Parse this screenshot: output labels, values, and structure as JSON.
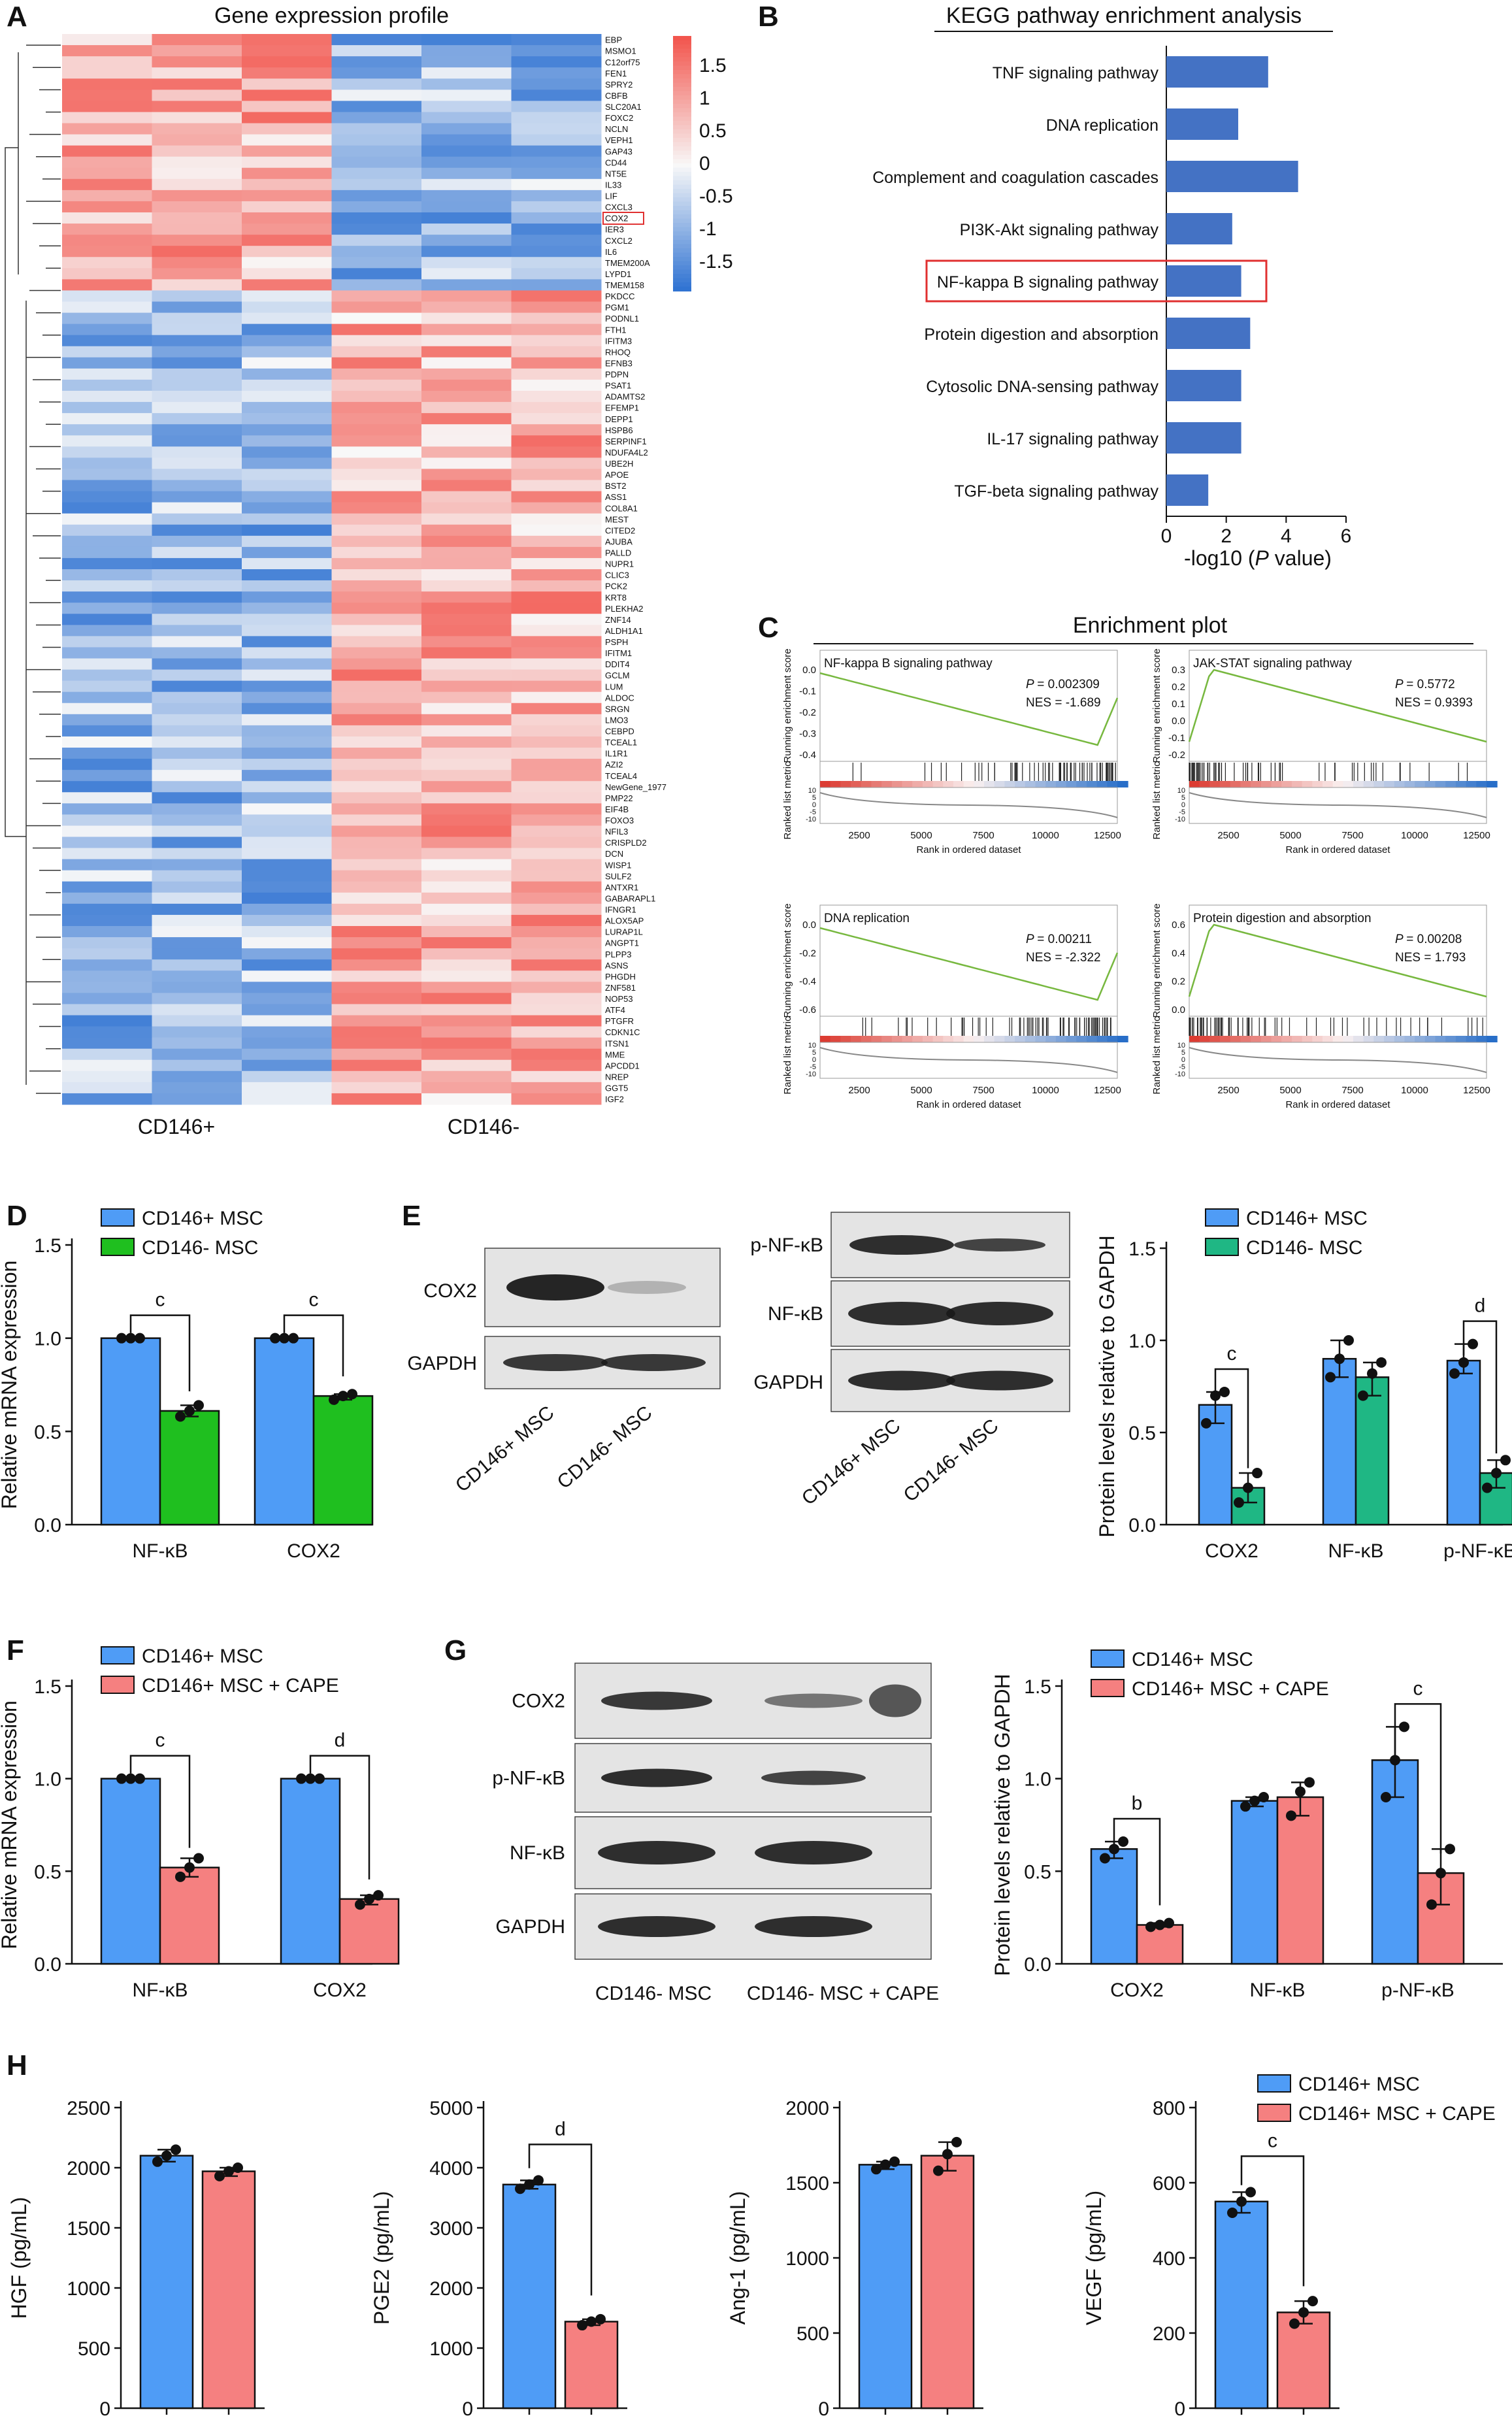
{
  "colors": {
    "cd146p": "#4f9cf6",
    "cd146n": "#1fbf1f",
    "cape": "#f58080",
    "teal": "#1fb784",
    "kegg": "#4472c4",
    "heat_low": "#2a6fd1",
    "heat_high": "#f2564e",
    "gsea": "#77b83f"
  },
  "panel_labels": [
    "A",
    "B",
    "C",
    "D",
    "E",
    "F",
    "G",
    "H"
  ],
  "chart_data": [
    {
      "id": "A",
      "type": "heatmap",
      "title": "Gene expression profile",
      "groups": [
        "CD146+",
        "CD146-"
      ],
      "colorbar_ticks": [
        "1.5",
        "1",
        "0.5",
        "0",
        "-0.5",
        "-1",
        "-1.5"
      ],
      "highlight_gene": "COX2",
      "genes_cluster1": [
        "EBP",
        "MSMO1",
        "C12orf75",
        "FEN1",
        "SPRY2",
        "CBFB",
        "SLC20A1",
        "FOXC2",
        "NCLN",
        "VEPH1",
        "GAP43",
        "CD44",
        "NT5E",
        "IL33",
        "LIF",
        "CXCL3",
        "COX2",
        "IER3",
        "CXCL2",
        "IL6",
        "TMEM200A",
        "LYPD1",
        "TMEM158"
      ],
      "genes_cluster2": [
        "PKDCC",
        "PGM1",
        "PODNL1",
        "FTH1",
        "IFITM3",
        "RHOQ",
        "EFNB3",
        "PDPN",
        "PSAT1",
        "ADAMTS2",
        "EFEMP1",
        "DEPP1",
        "HSPB6",
        "SERPINF1",
        "NDUFA4L2",
        "UBE2H",
        "APOE",
        "BST2",
        "ASS1",
        "COL8A1",
        "MEST",
        "CITED2",
        "AJUBA",
        "PALLD",
        "NUPR1",
        "CLIC3",
        "PCK2",
        "KRT8",
        "PLEKHA2",
        "ZNF14",
        "ALDH1A1",
        "PSPH",
        "IFITM1",
        "DDIT4",
        "GCLM",
        "LUM",
        "ALDOC",
        "SRGN",
        "LMO3",
        "CEBPD",
        "TCEAL1",
        "IL1R1",
        "AZI2",
        "TCEAL4",
        "NewGene_1977",
        "PMP22",
        "EIF4B",
        "FOXO3",
        "NFIL3",
        "CRISPLD2",
        "DCN",
        "WISP1",
        "SULF2",
        "ANTXR1",
        "GABARAPL1",
        "IFNGR1",
        "ALOX5AP",
        "LURAP1L",
        "ANGPT1",
        "PLPP3",
        "ASNS",
        "PHGDH",
        "ZNF581",
        "NOP53",
        "ATF4",
        "PTGFR",
        "CDKN1C",
        "ITSN1",
        "MME",
        "APCDD1",
        "NREP",
        "GGT5",
        "IGF2"
      ]
    },
    {
      "id": "B",
      "type": "bar",
      "orientation": "horizontal",
      "title": "KEGG pathway enrichment analysis",
      "categories": [
        "TNF signaling pathway",
        "DNA replication",
        "Complement and coagulation cascades",
        "PI3K-Akt signaling pathway",
        "NF-kappa B signaling pathway",
        "Protein digestion and absorption",
        "Cytosolic DNA-sensing pathway",
        "IL-17 signaling pathway",
        "TGF-beta signaling pathway"
      ],
      "values": [
        3.4,
        2.4,
        4.4,
        2.2,
        2.5,
        2.8,
        2.5,
        2.5,
        1.4
      ],
      "highlight": "NF-kappa B signaling pathway",
      "xlabel_pre": "-log10 (",
      "xlabel_it": "P",
      "xlabel_post": " value)",
      "xlim": [
        0,
        6
      ],
      "xticks": [
        "0",
        "2",
        "4",
        "6"
      ]
    },
    {
      "id": "C",
      "type": "line",
      "title": "Enrichment plot",
      "ylabel_top": "Running enrichment score",
      "ylabel_bottom": "Ranked list metric",
      "xlabel": "Rank in ordered dataset",
      "xticks": [
        "2500",
        "5000",
        "7500",
        "10000",
        "12500"
      ],
      "subplots": [
        {
          "name": "NF-kappa B signaling pathway",
          "p": "= 0.002309",
          "nes": "NES = -1.689",
          "yticks": [
            "0.0",
            "-0.1",
            "-0.2",
            "-0.3",
            "-0.4"
          ],
          "trend": "negative"
        },
        {
          "name": "JAK-STAT signaling pathway",
          "p": "= 0.5772",
          "nes": "NES = 0.9393",
          "yticks": [
            "0.3",
            "0.2",
            "0.1",
            "0.0",
            "-0.1",
            "-0.2"
          ],
          "trend": "positive"
        },
        {
          "name": "DNA replication",
          "p": "= 0.00211",
          "nes": "NES = -2.322",
          "yticks": [
            "0.0",
            "-0.2",
            "-0.4",
            "-0.6"
          ],
          "trend": "negative"
        },
        {
          "name": "Protein digestion and absorption",
          "p": "= 0.00208",
          "nes": "NES = 1.793",
          "yticks": [
            "0.6",
            "0.4",
            "0.2",
            "0.0"
          ],
          "trend": "positive"
        }
      ],
      "metric_ticks": [
        "10",
        "5",
        "0",
        "-5",
        "-10"
      ]
    },
    {
      "id": "D",
      "type": "bar",
      "ylabel": "Relative mRNA expression",
      "ylim": [
        0,
        1.5
      ],
      "yticks": [
        "0.0",
        "0.5",
        "1.0",
        "1.5"
      ],
      "categories": [
        "NF-κB",
        "COX2"
      ],
      "series": [
        {
          "name": "CD146+ MSC",
          "values": [
            1.0,
            1.0
          ],
          "points": [
            [
              1.0,
              1.0,
              1.0
            ],
            [
              1.0,
              1.0,
              1.0
            ]
          ]
        },
        {
          "name": "CD146- MSC",
          "values": [
            0.61,
            0.69
          ],
          "points": [
            [
              0.58,
              0.61,
              0.64
            ],
            [
              0.67,
              0.69,
              0.7
            ]
          ]
        }
      ],
      "significance": [
        "c",
        "c"
      ]
    },
    {
      "id": "E",
      "type": "bar",
      "ylabel": "Protein levels relative to GAPDH",
      "ylim": [
        0,
        1.5
      ],
      "yticks": [
        "0.0",
        "0.5",
        "1.0",
        "1.5"
      ],
      "categories": [
        "COX2",
        "NF-κB",
        "p-NF-κB"
      ],
      "series": [
        {
          "name": "CD146+ MSC",
          "values": [
            0.65,
            0.9,
            0.89
          ],
          "points": [
            [
              0.55,
              0.7,
              0.72
            ],
            [
              0.8,
              0.9,
              1.0
            ],
            [
              0.82,
              0.88,
              0.98
            ]
          ]
        },
        {
          "name": "CD146- MSC",
          "values": [
            0.2,
            0.8,
            0.28
          ],
          "points": [
            [
              0.12,
              0.2,
              0.28
            ],
            [
              0.7,
              0.82,
              0.88
            ],
            [
              0.2,
              0.28,
              0.35
            ]
          ]
        }
      ],
      "significance": [
        "c",
        "",
        "d"
      ],
      "blots": {
        "left_rows": [
          "COX2",
          "GAPDH"
        ],
        "right_rows": [
          "p-NF-κB",
          "NF-κB",
          "GAPDH"
        ],
        "lanes": [
          "CD146+ MSC",
          "CD146- MSC"
        ]
      }
    },
    {
      "id": "F",
      "type": "bar",
      "ylabel": "Relative mRNA expression",
      "ylim": [
        0,
        1.5
      ],
      "yticks": [
        "0.0",
        "0.5",
        "1.0",
        "1.5"
      ],
      "categories": [
        "NF-κB",
        "COX2"
      ],
      "series": [
        {
          "name": "CD146+ MSC",
          "values": [
            1.0,
            1.0
          ],
          "points": [
            [
              1.0,
              1.0,
              1.0
            ],
            [
              1.0,
              1.0,
              1.0
            ]
          ]
        },
        {
          "name": "CD146+ MSC + CAPE",
          "values": [
            0.52,
            0.35
          ],
          "points": [
            [
              0.47,
              0.52,
              0.57
            ],
            [
              0.32,
              0.35,
              0.37
            ]
          ]
        }
      ],
      "significance": [
        "c",
        "d"
      ]
    },
    {
      "id": "G",
      "type": "bar",
      "ylabel": "Protein levels relative to GAPDH",
      "ylim": [
        0,
        1.5
      ],
      "yticks": [
        "0.0",
        "0.5",
        "1.0",
        "1.5"
      ],
      "categories": [
        "COX2",
        "NF-κB",
        "p-NF-κB"
      ],
      "series": [
        {
          "name": "CD146+ MSC",
          "values": [
            0.62,
            0.88,
            1.1
          ],
          "points": [
            [
              0.57,
              0.62,
              0.66
            ],
            [
              0.85,
              0.88,
              0.9
            ],
            [
              0.9,
              1.1,
              1.28
            ]
          ]
        },
        {
          "name": "CD146+ MSC + CAPE",
          "values": [
            0.21,
            0.9,
            0.49
          ],
          "points": [
            [
              0.2,
              0.21,
              0.22
            ],
            [
              0.8,
              0.93,
              0.98
            ],
            [
              0.32,
              0.49,
              0.62
            ]
          ]
        }
      ],
      "significance": [
        "b",
        "",
        "c"
      ],
      "blots": {
        "rows": [
          "COX2",
          "p-NF-κB",
          "NF-κB",
          "GAPDH"
        ],
        "lanes": [
          "CD146- MSC",
          "CD146- MSC + CAPE"
        ]
      }
    },
    {
      "id": "H",
      "type": "bar",
      "legend": [
        "CD146+ MSC",
        "CD146+ MSC + CAPE"
      ],
      "panels": [
        {
          "ylabel": "HGF (pg/mL)",
          "ylim": [
            0,
            2500
          ],
          "yticks": [
            "0",
            "500",
            "1000",
            "1500",
            "2000",
            "2500"
          ],
          "values": [
            2100,
            1970
          ],
          "points": [
            [
              2050,
              2100,
              2150
            ],
            [
              1930,
              1970,
              2000
            ]
          ],
          "sig": ""
        },
        {
          "ylabel": "PGE2 (pg/mL)",
          "ylim": [
            0,
            5000
          ],
          "yticks": [
            "0",
            "1000",
            "2000",
            "3000",
            "4000",
            "5000"
          ],
          "values": [
            3720,
            1440
          ],
          "points": [
            [
              3650,
              3720,
              3790
            ],
            [
              1380,
              1440,
              1480
            ]
          ],
          "sig": "d"
        },
        {
          "ylabel": "Ang-1 (pg/mL)",
          "ylim": [
            0,
            2000
          ],
          "yticks": [
            "0",
            "500",
            "1000",
            "1500",
            "2000"
          ],
          "values": [
            1620,
            1680
          ],
          "points": [
            [
              1590,
              1620,
              1640
            ],
            [
              1580,
              1690,
              1770
            ]
          ],
          "sig": ""
        },
        {
          "ylabel": "VEGF (pg/mL)",
          "ylim": [
            0,
            800
          ],
          "yticks": [
            "0",
            "200",
            "400",
            "600",
            "800"
          ],
          "values": [
            550,
            255
          ],
          "points": [
            [
              520,
              550,
              575
            ],
            [
              225,
              255,
              285
            ]
          ],
          "sig": "c"
        }
      ]
    }
  ]
}
